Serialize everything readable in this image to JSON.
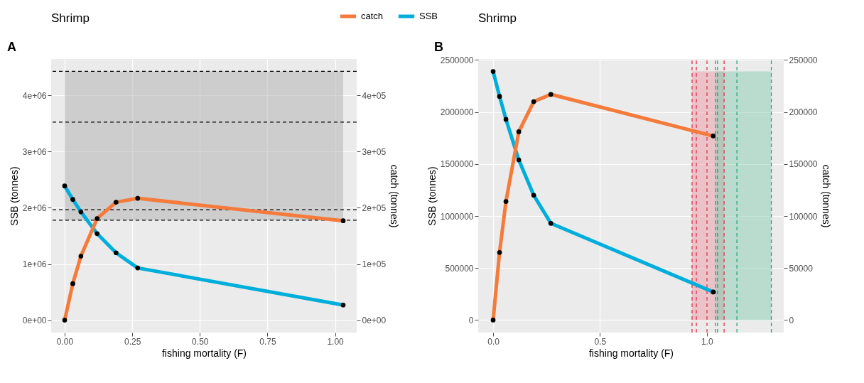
{
  "chart_data": [
    {
      "type": "line",
      "title": "Shrimp",
      "annotations": [
        "A"
      ],
      "xlabel": "fishing mortality (F)",
      "ylabel": "SSB (tonnes)",
      "y2label": "catch (tonnes)",
      "x": [
        0,
        0.03,
        0.06,
        0.12,
        0.19,
        0.27,
        1.03
      ],
      "series": [
        {
          "name": "catch",
          "color": "#f47b3b",
          "axis": "y2",
          "values": [
            0,
            65000,
            114000,
            181000,
            210000,
            217000,
            177000
          ]
        },
        {
          "name": "SSB",
          "color": "#00aedb",
          "values": [
            2390000,
            2150000,
            1930000,
            1540000,
            1200000,
            930000,
            270000
          ]
        }
      ],
      "marker": "circle",
      "line_style": "solid",
      "grid": true,
      "legend": "top",
      "xlim": [
        -0.05,
        1.08
      ],
      "ylim": [
        -220000,
        4650000
      ],
      "y2lim": [
        -22000,
        465000
      ],
      "xticks": [
        {
          "value": 0,
          "label": "0.00"
        },
        {
          "value": 0.25,
          "label": "0.25"
        },
        {
          "value": 0.5,
          "label": "0.50"
        },
        {
          "value": 0.75,
          "label": "0.75"
        },
        {
          "value": 1,
          "label": "1.00"
        }
      ],
      "yticks": [
        {
          "value": 0,
          "label": "0e+00"
        },
        {
          "value": 1000000,
          "label": "1e+06"
        },
        {
          "value": 2000000,
          "label": "2e+06"
        },
        {
          "value": 3000000,
          "label": "3e+06"
        },
        {
          "value": 4000000,
          "label": "4e+06"
        }
      ],
      "y2ticks": [
        {
          "value": 0,
          "label": "0e+00"
        },
        {
          "value": 100000,
          "label": "1e+05"
        },
        {
          "value": 200000,
          "label": "2e+05"
        },
        {
          "value": 300000,
          "label": "3e+05"
        },
        {
          "value": 400000,
          "label": "4e+05"
        }
      ],
      "bands": [
        {
          "axis": "y",
          "from": 1779000,
          "to": 4430000,
          "color": "#b5b5b5"
        }
      ],
      "ref_lines": [
        {
          "axis": "y",
          "value": 4430000,
          "color": "#000000",
          "line_style": "dashed"
        },
        {
          "axis": "y",
          "value": 3527000,
          "color": "#000000",
          "line_style": "dashed"
        },
        {
          "axis": "y",
          "value": 1968000,
          "color": "#000000",
          "line_style": "dashed"
        },
        {
          "axis": "y",
          "value": 1779000,
          "color": "#000000",
          "line_style": "dashed"
        }
      ]
    },
    {
      "type": "line",
      "title": "Shrimp",
      "annotations": [
        "B"
      ],
      "xlabel": "fishing mortality (F)",
      "ylabel": "SSB (tonnes)",
      "y2label": "catch (tonnes)",
      "x": [
        0,
        0.03,
        0.06,
        0.12,
        0.19,
        0.27,
        1.03
      ],
      "series": [
        {
          "name": "catch",
          "color": "#f47b3b",
          "axis": "y2",
          "values": [
            0,
            65000,
            114000,
            181000,
            210000,
            217000,
            177000
          ]
        },
        {
          "name": "SSB",
          "color": "#00aedb",
          "values": [
            2390000,
            2150000,
            1930000,
            1540000,
            1200000,
            930000,
            270000
          ]
        }
      ],
      "marker": "circle",
      "line_style": "solid",
      "grid": true,
      "legend": "top",
      "xlim": [
        -0.07,
        1.36
      ],
      "ylim": [
        -120000,
        2510000
      ],
      "y2lim": [
        -12000,
        251000
      ],
      "xticks": [
        {
          "value": 0,
          "label": "0.0"
        },
        {
          "value": 0.5,
          "label": "0.5"
        },
        {
          "value": 1,
          "label": "1.0"
        }
      ],
      "yticks": [
        0,
        500000,
        1000000,
        1500000,
        2000000,
        2500000
      ],
      "y2ticks": [
        0,
        50000,
        100000,
        150000,
        200000,
        250000
      ],
      "bands": [
        {
          "axis": "x",
          "from": 0.931,
          "to": 1.081,
          "color": "#e8909c"
        },
        {
          "axis": "x",
          "from": 1.041,
          "to": 1.302,
          "color": "#7cc9ae"
        }
      ],
      "ref_lines": [
        {
          "axis": "x",
          "value": 0.931,
          "color": "#e0314b",
          "line_style": "dashed"
        },
        {
          "axis": "x",
          "value": 0.951,
          "color": "#e0314b",
          "line_style": "dashed"
        },
        {
          "axis": "x",
          "value": 1.001,
          "color": "#e0314b",
          "line_style": "dashed"
        },
        {
          "axis": "x",
          "value": 1.081,
          "color": "#e0314b",
          "line_style": "dashed"
        },
        {
          "axis": "x",
          "value": 1.041,
          "color": "#1fa67a",
          "line_style": "dashed"
        },
        {
          "axis": "x",
          "value": 1.05,
          "color": "#1fa67a",
          "line_style": "dashed"
        },
        {
          "axis": "x",
          "value": 1.141,
          "color": "#1fa67a",
          "line_style": "dashed"
        },
        {
          "axis": "x",
          "value": 1.302,
          "color": "#1fa67a",
          "line_style": "dashed"
        }
      ]
    }
  ]
}
